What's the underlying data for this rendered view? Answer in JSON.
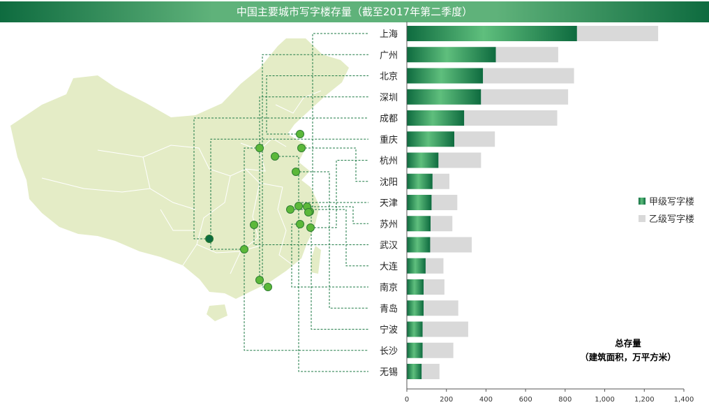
{
  "title": "中国主要城市写字楼存量（截至2017年第二季度）",
  "colors": {
    "grade_a_dark": "#0e6b3f",
    "grade_a_light": "#5fbf7d",
    "grade_b": "#d9d9d9",
    "map_fill": "#e4ecc6",
    "leader_line": "#1e7a45",
    "dot": "#5cb83a",
    "dot_highlight": "#0e6b3f"
  },
  "note_line1": "总存量",
  "note_line2": "（建筑面积，万平方米）",
  "chart_data": {
    "type": "bar",
    "orientation": "horizontal",
    "stacked": true,
    "title": "中国主要城市写字楼存量（截至2017年第二季度）",
    "categories": [
      "上海",
      "广州",
      "北京",
      "深圳",
      "成都",
      "重庆",
      "杭州",
      "沈阳",
      "天津",
      "苏州",
      "武汉",
      "大连",
      "南京",
      "青岛",
      "宁波",
      "长沙",
      "无锡"
    ],
    "series": [
      {
        "name": "甲级写字楼",
        "values": [
          860,
          450,
          385,
          375,
          290,
          240,
          160,
          130,
          125,
          120,
          118,
          95,
          85,
          85,
          80,
          80,
          75
        ]
      },
      {
        "name": "乙级写字楼",
        "values": [
          410,
          315,
          460,
          440,
          470,
          205,
          215,
          85,
          130,
          110,
          210,
          90,
          105,
          175,
          230,
          155,
          90
        ]
      }
    ],
    "xlim": [
      0,
      1400
    ],
    "xticks": [
      "0",
      "200",
      "400",
      "600",
      "800",
      "1,000",
      "1,200",
      "1,400"
    ],
    "legend_position": "right",
    "grid": false
  }
}
